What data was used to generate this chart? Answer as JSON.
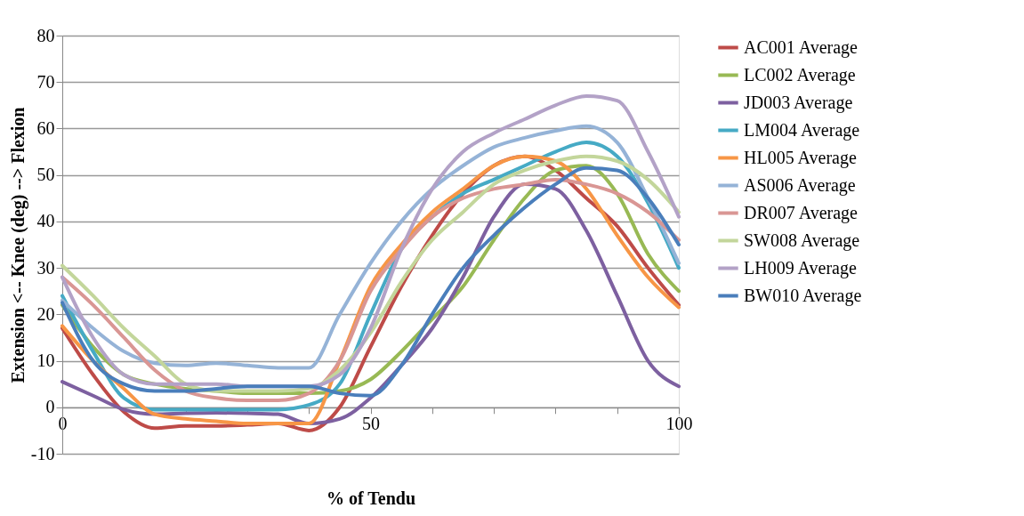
{
  "chart_data": {
    "type": "line",
    "xlabel": "% of Tendu",
    "ylabel": "Extension <-- Knee (deg) --> Flexion",
    "x": [
      0,
      5,
      10,
      15,
      20,
      25,
      30,
      35,
      40,
      45,
      50,
      55,
      60,
      65,
      70,
      75,
      80,
      85,
      90,
      95,
      100
    ],
    "series": [
      {
        "name": "AC001 Average",
        "color": "#be4b48",
        "values": [
          17,
          7,
          -1,
          -4.5,
          -4,
          -4,
          -3.8,
          -3.5,
          -5,
          0,
          13,
          26,
          37,
          46,
          52,
          54,
          51,
          45,
          39,
          30,
          22
        ]
      },
      {
        "name": "LC002 Average",
        "color": "#98b954",
        "values": [
          22,
          13,
          7,
          5,
          4,
          3.5,
          3,
          3,
          3,
          3.5,
          6,
          12,
          19,
          26,
          36,
          45,
          51,
          52,
          46,
          33,
          25
        ]
      },
      {
        "name": "JD003 Average",
        "color": "#7d60a0",
        "values": [
          5.5,
          2.5,
          -0.5,
          -1.5,
          -1.3,
          -1.2,
          -1.3,
          -1.5,
          -3.5,
          -2.5,
          2,
          9,
          17,
          28,
          41,
          48,
          47,
          38,
          24,
          10,
          4.5
        ]
      },
      {
        "name": "LM004 Average",
        "color": "#46aac5",
        "values": [
          24,
          12,
          2,
          -0.5,
          -0.5,
          -0.5,
          -0.5,
          -0.5,
          0.5,
          5,
          20,
          34,
          41,
          46,
          49,
          52,
          55,
          57,
          54,
          44,
          30
        ]
      },
      {
        "name": "HL005 Average",
        "color": "#f79646",
        "values": [
          17.5,
          10,
          4,
          -1.5,
          -2.5,
          -3,
          -3.5,
          -3.5,
          -3.5,
          10,
          26,
          35,
          42,
          47,
          52,
          54,
          53,
          47,
          37,
          28,
          21.5
        ]
      },
      {
        "name": "AS006 Average",
        "color": "#95b3d7",
        "values": [
          23,
          17,
          12,
          9.5,
          9,
          9.5,
          9,
          8.5,
          8.5,
          20,
          31,
          40,
          47,
          52,
          56,
          58,
          59.5,
          60.5,
          57,
          45,
          31
        ]
      },
      {
        "name": "DR007 Average",
        "color": "#d99694",
        "values": [
          28,
          22,
          15,
          8,
          3.5,
          2,
          1.5,
          1.5,
          3,
          10,
          25,
          34,
          41,
          45,
          47,
          48,
          49,
          48,
          46,
          42,
          36
        ]
      },
      {
        "name": "SW008 Average",
        "color": "#c3d69b",
        "values": [
          30.5,
          24,
          17,
          11,
          5,
          3.5,
          3.5,
          3.5,
          4,
          8,
          16,
          27,
          36,
          42,
          48,
          51,
          53,
          54,
          53,
          49,
          42
        ]
      },
      {
        "name": "LH009 Average",
        "color": "#b3a2c7",
        "values": [
          28,
          15,
          7,
          5,
          5,
          5,
          4.5,
          4.5,
          4.5,
          7,
          17,
          34,
          47,
          55,
          59,
          62,
          65,
          67,
          66,
          55,
          41
        ]
      },
      {
        "name": "BW010 Average",
        "color": "#4a7ebb",
        "values": [
          22.5,
          10,
          5,
          3.5,
          3.5,
          4,
          4.5,
          4.5,
          4.5,
          3,
          2.5,
          9,
          20,
          30,
          37,
          43,
          48,
          51.5,
          51,
          45,
          35
        ]
      }
    ],
    "xlim": [
      0,
      100
    ],
    "xticks": [
      0,
      {
        "value": 10,
        "label": null
      },
      {
        "value": 20,
        "label": null
      },
      {
        "value": 30,
        "label": null
      },
      {
        "value": 40,
        "label": null
      },
      50,
      {
        "value": 60,
        "label": null
      },
      {
        "value": 70,
        "label": null
      },
      {
        "value": 80,
        "label": null
      },
      {
        "value": 90,
        "label": null
      },
      100
    ],
    "ylim": [
      -10,
      80
    ],
    "yticks": [
      -10,
      0,
      10,
      20,
      30,
      40,
      50,
      60,
      70,
      80
    ],
    "grid": "y",
    "legend": "right",
    "marker": "none",
    "line_style": "solid"
  }
}
